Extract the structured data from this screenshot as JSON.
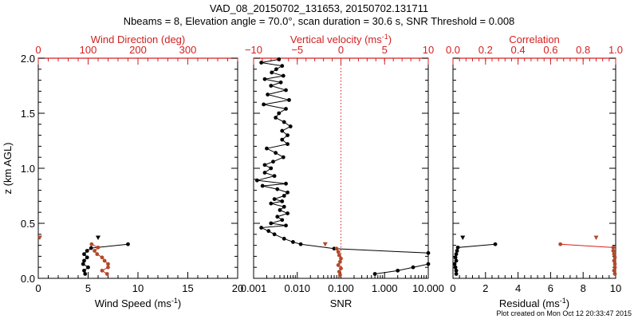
{
  "title_line1": "VAD_08_20150702_131653, 20150702.131711",
  "title_line2": "Nbeams = 8, Elevation angle = 70.0°, scan duration = 30.6 s, SNR Threshold = 0.008",
  "footer": "Plot created on Mon Oct 12 20:33:47 2015",
  "colors": {
    "primary": "#000000",
    "secondary": "#d42020",
    "secondary_points": "#b04a2a"
  },
  "chart_data": [
    {
      "type": "scatter",
      "title": "Wind Speed / Wind Direction",
      "ylabel": "z (km AGL)",
      "ylim": [
        0,
        2.0
      ],
      "yticks": [
        "0.0",
        "0.5",
        "1.0",
        "1.5",
        "2.0"
      ],
      "xlabel_bottom": "Wind Speed (ms",
      "xlabel_bottom_sup": "-1",
      "xlim_bottom": [
        0,
        20
      ],
      "xticks_bottom": [
        "0",
        "5",
        "10",
        "15",
        "20"
      ],
      "xlabel_top": "Wind Direction (deg)",
      "xlim_top": [
        0,
        400
      ],
      "xticks_top": [
        "0",
        "100",
        "200",
        "300"
      ],
      "series": [
        {
          "name": "Wind Speed",
          "axis": "bottom",
          "color": "#000000",
          "points": [
            [
              4.7,
              0.04
            ],
            [
              4.6,
              0.07
            ],
            [
              5.0,
              0.1
            ],
            [
              4.5,
              0.13
            ],
            [
              4.6,
              0.16
            ],
            [
              4.9,
              0.19
            ],
            [
              4.6,
              0.22
            ],
            [
              4.9,
              0.25
            ],
            [
              5.3,
              0.275
            ],
            [
              9.0,
              0.31
            ]
          ],
          "extra_points": [
            [
              6.0,
              0.37
            ]
          ]
        },
        {
          "name": "Wind Direction",
          "axis": "top",
          "color": "#b04a2a",
          "points": [
            [
              138,
              0.04
            ],
            [
              128,
              0.07
            ],
            [
              140,
              0.1
            ],
            [
              140,
              0.13
            ],
            [
              133,
              0.16
            ],
            [
              128,
              0.19
            ],
            [
              118,
              0.22
            ],
            [
              113,
              0.25
            ],
            [
              120,
              0.28
            ],
            [
              107,
              0.31
            ]
          ],
          "extra_points": [
            [
              3,
              0.37
            ]
          ]
        }
      ]
    },
    {
      "type": "scatter",
      "title": "Vertical velocity / SNR",
      "ylim": [
        0,
        2.0
      ],
      "xlabel_bottom": "SNR",
      "xscale_bottom": "log",
      "xlim_bottom": [
        0.001,
        10
      ],
      "xticks_bottom": [
        "0.001",
        "0.010",
        "0.100",
        "1.000",
        "10.000"
      ],
      "xlabel_top": "Vertical velocity (ms",
      "xlabel_top_sup": "-1",
      "xlim_top": [
        -10,
        10
      ],
      "xticks_top": [
        "−10",
        "−5",
        "0",
        "5",
        "10"
      ],
      "reference_line": {
        "axis": "top",
        "value": 0
      },
      "series": [
        {
          "name": "SNR",
          "axis": "bottom",
          "color": "#000000",
          "points": [
            [
              0.6,
              0.04
            ],
            [
              2.0,
              0.07
            ],
            [
              4.5,
              0.1
            ],
            [
              10.0,
              0.13
            ],
            [
              10.0,
              0.23
            ],
            [
              0.07,
              0.27
            ],
            [
              0.012,
              0.31
            ],
            [
              0.008,
              0.33
            ],
            [
              0.005,
              0.36
            ],
            [
              0.003,
              0.4
            ],
            [
              0.0022,
              0.43
            ],
            [
              0.0015,
              0.46
            ],
            [
              0.0055,
              0.48
            ],
            [
              0.0025,
              0.5
            ],
            [
              0.0045,
              0.53
            ],
            [
              0.0035,
              0.56
            ],
            [
              0.006,
              0.59
            ],
            [
              0.004,
              0.62
            ],
            [
              0.005,
              0.65
            ],
            [
              0.0025,
              0.68
            ],
            [
              0.0045,
              0.7
            ],
            [
              0.003,
              0.72
            ],
            [
              0.005,
              0.75
            ],
            [
              0.006,
              0.78
            ],
            [
              0.0035,
              0.81
            ],
            [
              0.0016,
              0.84
            ],
            [
              0.0055,
              0.86
            ],
            [
              0.0012,
              0.89
            ],
            [
              0.003,
              0.93
            ],
            [
              0.0018,
              0.96
            ],
            [
              0.0025,
              1.0
            ],
            [
              0.0018,
              1.03
            ],
            [
              0.0028,
              1.06
            ],
            [
              0.0048,
              1.1
            ],
            [
              0.0032,
              1.14
            ],
            [
              0.002,
              1.18
            ],
            [
              0.006,
              1.22
            ],
            [
              0.0045,
              1.26
            ],
            [
              0.006,
              1.3
            ],
            [
              0.0045,
              1.34
            ],
            [
              0.007,
              1.38
            ],
            [
              0.005,
              1.42
            ],
            [
              0.0032,
              1.46
            ],
            [
              0.0038,
              1.5
            ],
            [
              0.0055,
              1.54
            ],
            [
              0.0017,
              1.58
            ],
            [
              0.0065,
              1.62
            ],
            [
              0.0021,
              1.67
            ],
            [
              0.0055,
              1.71
            ],
            [
              0.0025,
              1.75
            ],
            [
              0.0042,
              1.78
            ],
            [
              0.0018,
              1.81
            ],
            [
              0.0048,
              1.84
            ],
            [
              0.0026,
              1.87
            ],
            [
              0.0033,
              1.9
            ],
            [
              0.0045,
              1.93
            ],
            [
              0.0015,
              1.96
            ],
            [
              0.0038,
              1.99
            ]
          ]
        },
        {
          "name": "Vertical velocity",
          "axis": "top",
          "color": "#b04a2a",
          "points": [
            [
              -0.1,
              0.03
            ],
            [
              -0.2,
              0.06
            ],
            [
              0.0,
              0.09
            ],
            [
              -0.3,
              0.12
            ],
            [
              -0.1,
              0.15
            ],
            [
              0.0,
              0.18
            ],
            [
              -0.2,
              0.21
            ],
            [
              -0.3,
              0.24
            ],
            [
              -0.5,
              0.27
            ]
          ],
          "extra_points": [
            [
              -1.8,
              0.31
            ]
          ]
        }
      ]
    },
    {
      "type": "scatter",
      "title": "Correlation / Residual",
      "ylim": [
        0,
        2.0
      ],
      "xlabel_bottom": "Residual (ms",
      "xlabel_bottom_sup": "-1",
      "xlim_bottom": [
        0,
        10
      ],
      "xticks_bottom": [
        "0",
        "2",
        "4",
        "6",
        "8",
        "10"
      ],
      "xlabel_top": "Correlation",
      "xlim_top": [
        0,
        1.0
      ],
      "xticks_top": [
        "0.0",
        "0.2",
        "0.4",
        "0.6",
        "0.8",
        "1.0"
      ],
      "series": [
        {
          "name": "Residual",
          "axis": "bottom",
          "color": "#000000",
          "points": [
            [
              0.2,
              0.04
            ],
            [
              0.2,
              0.07
            ],
            [
              0.15,
              0.1
            ],
            [
              0.1,
              0.13
            ],
            [
              0.2,
              0.16
            ],
            [
              0.15,
              0.19
            ],
            [
              0.2,
              0.22
            ],
            [
              0.25,
              0.25
            ],
            [
              0.3,
              0.28
            ],
            [
              2.6,
              0.31
            ]
          ],
          "extra_points": [
            [
              0.6,
              0.37
            ]
          ]
        },
        {
          "name": "Correlation",
          "axis": "top",
          "color": "#b04a2a",
          "points": [
            [
              0.995,
              0.04
            ],
            [
              0.99,
              0.07
            ],
            [
              0.995,
              0.1
            ],
            [
              0.995,
              0.13
            ],
            [
              0.99,
              0.16
            ],
            [
              0.995,
              0.19
            ],
            [
              0.99,
              0.22
            ],
            [
              0.985,
              0.25
            ],
            [
              0.985,
              0.28
            ],
            [
              0.66,
              0.31
            ]
          ],
          "extra_points": [
            [
              0.88,
              0.37
            ]
          ]
        }
      ]
    }
  ]
}
